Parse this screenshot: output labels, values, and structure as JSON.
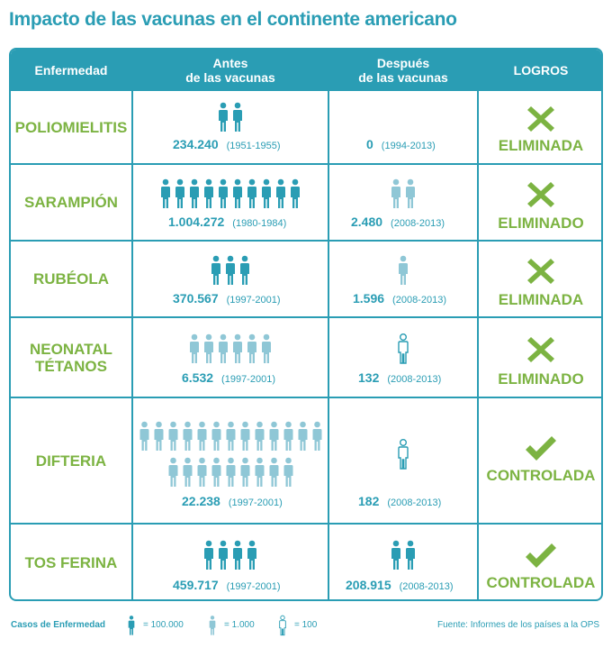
{
  "title": "Impacto de las vacunas en el continente americano",
  "colors": {
    "teal": "#2a9db4",
    "light": "#8fc7d6",
    "green": "#7cb342"
  },
  "header": {
    "disease": "Enfermedad",
    "before": "Antes\nde las vacunas",
    "after": "Después\nde las vacunas",
    "achievements": "LOGROS"
  },
  "rows": [
    {
      "disease": "POLIOMIELITIS",
      "before_value": "234.240",
      "before_period": "(1951-1955)",
      "after_value": "0",
      "after_period": "(1994-2013)",
      "status": "ELIMINADA",
      "mark": "cross",
      "before_figures": {
        "large": 2,
        "medium": 0,
        "small": 0
      },
      "after_figures": {
        "large": 0,
        "medium": 0,
        "small": 0
      }
    },
    {
      "disease": "SARAMPIÓN",
      "before_value": "1.004.272",
      "before_period": "(1980-1984)",
      "after_value": "2.480",
      "after_period": "(2008-2013)",
      "status": "ELIMINADO",
      "mark": "cross",
      "before_figures": {
        "large": 10,
        "medium": 0,
        "small": 0
      },
      "after_figures": {
        "large": 0,
        "medium": 2,
        "small": 0
      }
    },
    {
      "disease": "RUBÉOLA",
      "before_value": "370.567",
      "before_period": "(1997-2001)",
      "after_value": "1.596",
      "after_period": "(2008-2013)",
      "status": "ELIMINADA",
      "mark": "cross",
      "before_figures": {
        "large": 3,
        "medium": 0,
        "small": 0
      },
      "after_figures": {
        "large": 0,
        "medium": 1,
        "small": 0
      }
    },
    {
      "disease": "NEONATAL\nTÉTANOS",
      "before_value": "6.532",
      "before_period": "(1997-2001)",
      "after_value": "132",
      "after_period": "(2008-2013)",
      "status": "ELIMINADO",
      "mark": "cross",
      "before_figures": {
        "large": 0,
        "medium": 6,
        "small": 0
      },
      "after_figures": {
        "large": 0,
        "medium": 0,
        "small": 1
      }
    },
    {
      "disease": "DIFTERIA",
      "before_value": "22.238",
      "before_period": "(1997-2001)",
      "after_value": "182",
      "after_period": "(2008-2013)",
      "status": "CONTROLADA",
      "mark": "check",
      "before_figures": {
        "large": 0,
        "medium": 22,
        "small": 0
      },
      "after_figures": {
        "large": 0,
        "medium": 0,
        "small": 1
      }
    },
    {
      "disease": "TOS FERINA",
      "before_value": "459.717",
      "before_period": "(1997-2001)",
      "after_value": "208.915",
      "after_period": "(2008-2013)",
      "status": "CONTROLADA",
      "mark": "check",
      "before_figures": {
        "large": 4,
        "medium": 0,
        "small": 0
      },
      "after_figures": {
        "large": 2,
        "medium": 0,
        "small": 0
      }
    }
  ],
  "legend": {
    "label": "Casos de Enfermedad",
    "large": "= 100.000",
    "medium": "= 1.000",
    "small": "= 100"
  },
  "source": "Fuente: Informes de los países a la OPS"
}
